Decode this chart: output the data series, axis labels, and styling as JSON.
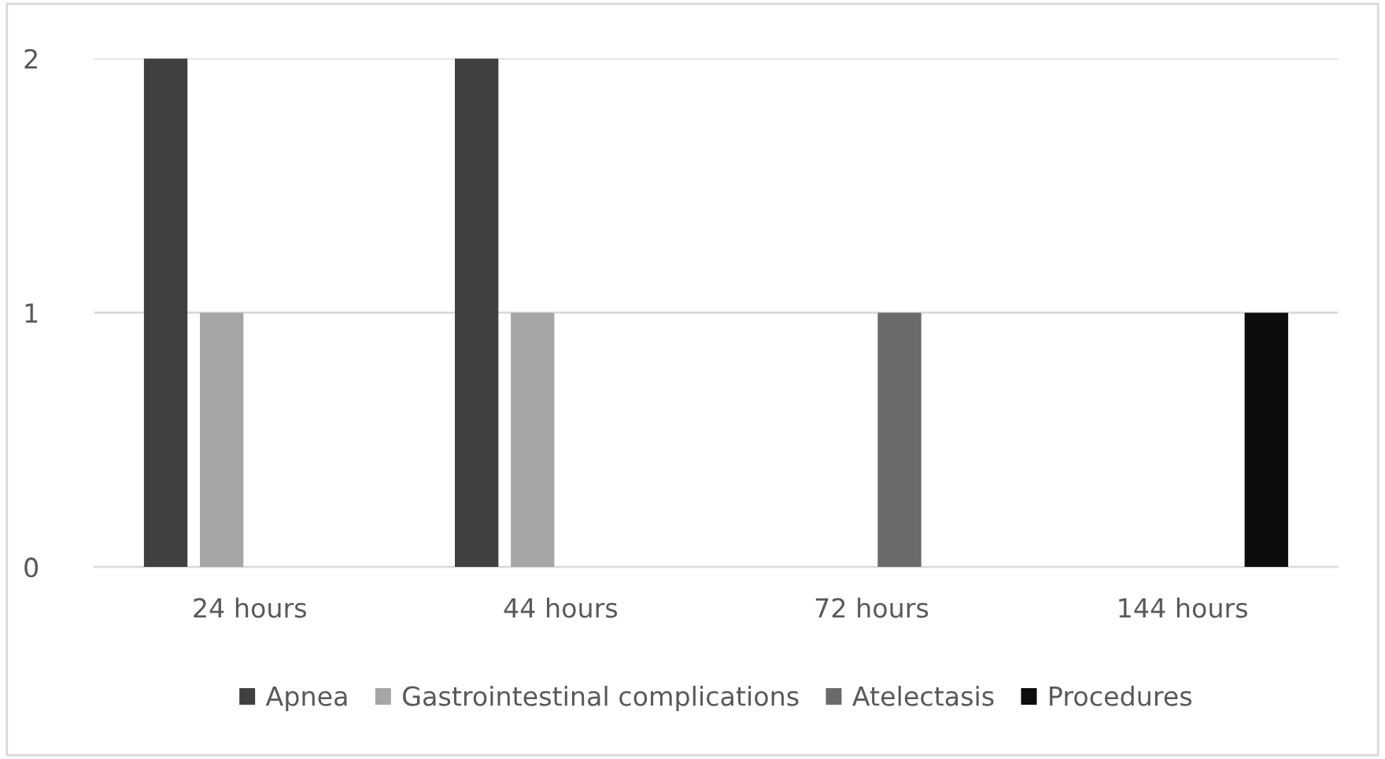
{
  "chart_data": {
    "type": "bar",
    "categories": [
      "24 hours",
      "44 hours",
      "72 hours",
      "144 hours"
    ],
    "series": [
      {
        "name": "Apnea",
        "color": "#404040",
        "values": [
          2,
          2,
          null,
          null
        ]
      },
      {
        "name": "Gastrointestinal complications",
        "color": "#a6a6a6",
        "values": [
          1,
          1,
          null,
          null
        ]
      },
      {
        "name": "Atelectasis",
        "color": "#6b6b6b",
        "values": [
          null,
          null,
          1,
          null
        ]
      },
      {
        "name": "Procedures",
        "color": "#0d0d0d",
        "values": [
          null,
          null,
          null,
          1
        ]
      }
    ],
    "ylim": [
      0,
      2
    ],
    "yticks": [
      0,
      1,
      2
    ],
    "grid": "y",
    "legend": "bottom"
  }
}
